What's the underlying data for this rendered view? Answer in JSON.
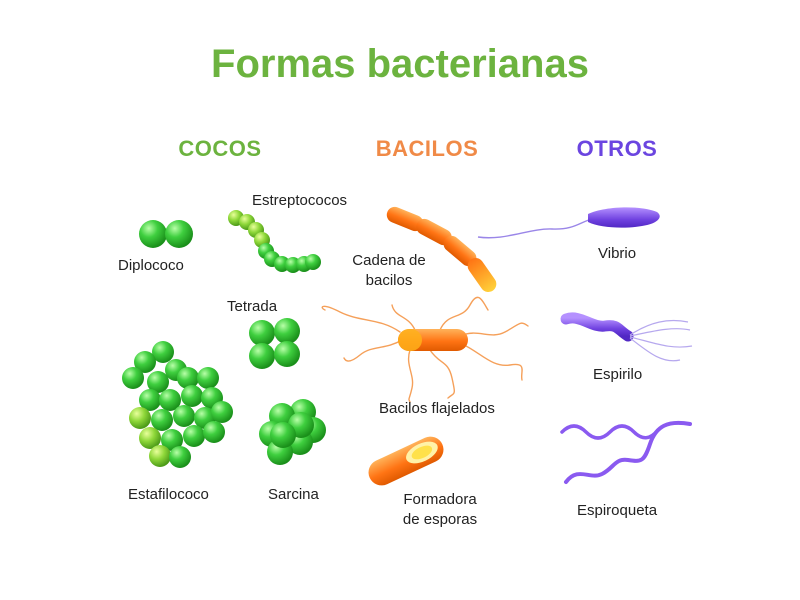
{
  "title": "Formas bacterianas",
  "colors": {
    "title": "#6cb33f",
    "cocos": "#6cb33f",
    "bacilos": "#f08a47",
    "otros": "#6b45e0",
    "coccus_fill": "#3fcf3f",
    "coccus_dark": "#1f9a1f",
    "bacillus_fill": "#ff7a1a",
    "bacillus_light": "#ffd23a",
    "flagella": "#f5a05a",
    "vibrio_fill": "#7b4be8",
    "spiral_fill": "#9a6cf0",
    "tail": "#9a86e8"
  },
  "headings": {
    "cocos": "COCOS",
    "bacilos": "BACILOS",
    "otros": "OTROS"
  },
  "labels": {
    "diplococo": "Diplococo",
    "estreptococos": "Estreptococos",
    "tetrada": "Tetrada",
    "estafilococo": "Estafilococo",
    "sarcina": "Sarcina",
    "cadena_line1": "Cadena de",
    "cadena_line2": "bacilos",
    "flajelados": "Bacilos flajelados",
    "formadora_line1": "Formadora",
    "formadora_line2": "de esporas",
    "vibrio": "Vibrio",
    "espirilo": "Espirilo",
    "espiroqueta": "Espiroqueta"
  }
}
